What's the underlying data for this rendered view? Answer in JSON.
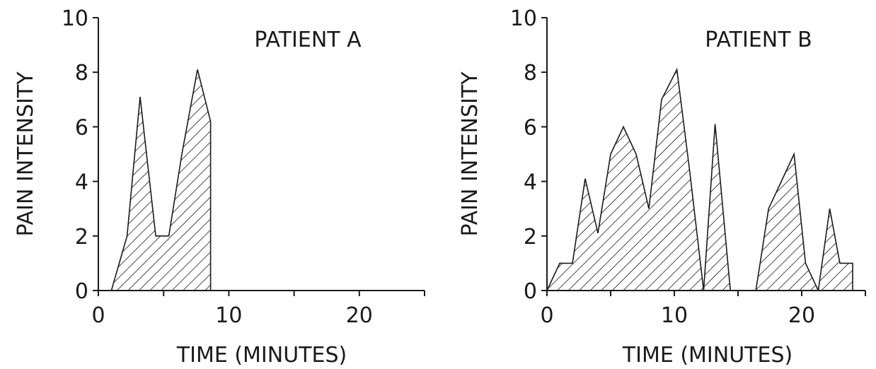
{
  "chart_data": [
    {
      "type": "area",
      "title": "PATIENT A",
      "xlabel": "TIME (MINUTES)",
      "ylabel": "PAIN INTENSITY",
      "xlim": [
        0,
        25
      ],
      "ylim": [
        0,
        10
      ],
      "x_ticks": [
        0,
        10,
        20
      ],
      "y_ticks": [
        0,
        2,
        4,
        6,
        8,
        10
      ],
      "x_minor_ticks": [
        5,
        15,
        25
      ],
      "grid": false,
      "fill": "hatched",
      "segments": [
        {
          "x": [
            1.0,
            2.2,
            3.2,
            4.4,
            5.4,
            6.4,
            7.6,
            8.6,
            8.6
          ],
          "y": [
            0,
            2,
            7.1,
            2,
            2,
            5,
            8.1,
            6.2,
            0
          ]
        }
      ]
    },
    {
      "type": "area",
      "title": "PATIENT B",
      "xlabel": "TIME (MINUTES)",
      "ylabel": "PAIN INTENSITY",
      "xlim": [
        0,
        25
      ],
      "ylim": [
        0,
        10
      ],
      "x_ticks": [
        0,
        10,
        20
      ],
      "y_ticks": [
        0,
        2,
        4,
        6,
        8,
        10
      ],
      "x_minor_ticks": [
        5,
        15,
        25
      ],
      "grid": false,
      "fill": "hatched",
      "segments": [
        {
          "x": [
            0,
            1,
            2,
            3,
            4,
            5,
            6,
            7,
            8,
            9,
            10.2,
            11.2,
            12.3
          ],
          "y": [
            0,
            1,
            1,
            4.1,
            2.1,
            5,
            6,
            5,
            3,
            7,
            8.1,
            4.4,
            0
          ]
        },
        {
          "x": [
            12.3,
            13.2,
            14.4
          ],
          "y": [
            0,
            6.1,
            0
          ]
        },
        {
          "x": [
            16.4,
            17.4,
            18.4,
            19.4,
            20.3,
            21.3
          ],
          "y": [
            0,
            3,
            4,
            5,
            1,
            0
          ]
        },
        {
          "x": [
            21.3,
            22.2,
            23.0,
            24.0,
            24.0
          ],
          "y": [
            0,
            3,
            1,
            1,
            0
          ]
        }
      ]
    }
  ]
}
